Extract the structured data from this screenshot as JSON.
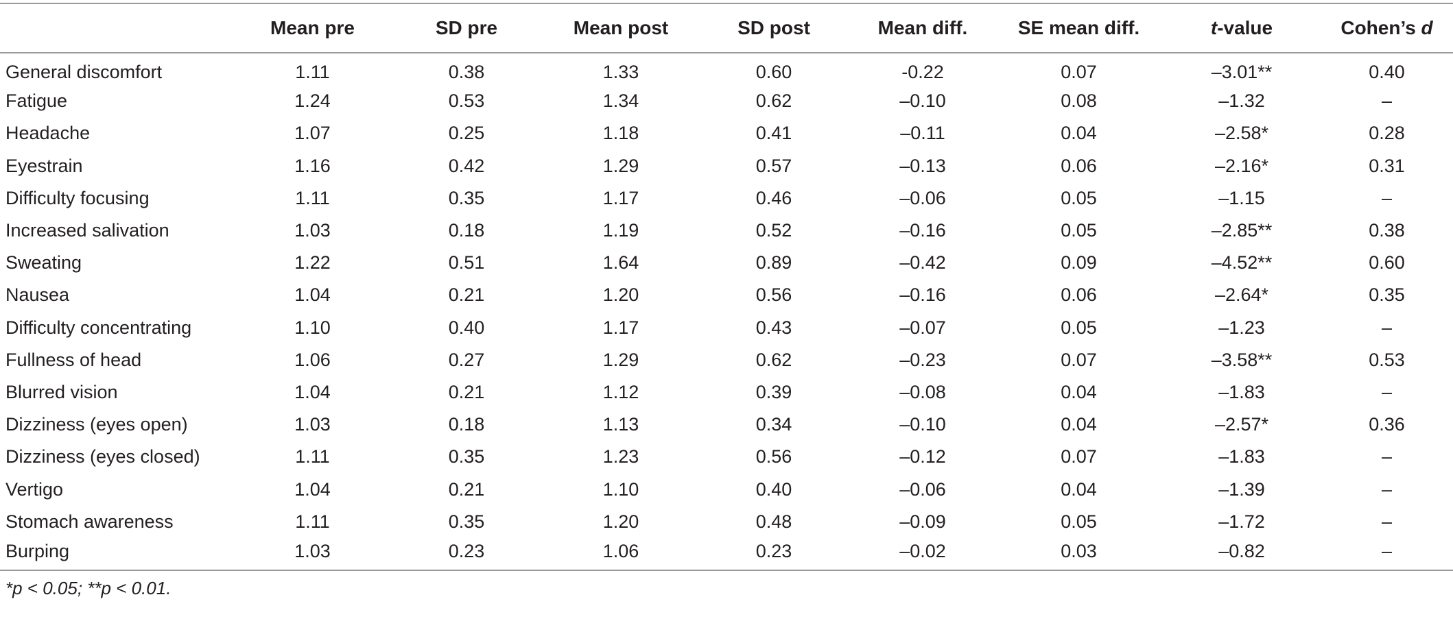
{
  "table": {
    "headers": {
      "label": "",
      "mean_pre": "Mean pre",
      "sd_pre": "SD pre",
      "mean_post": "Mean post",
      "sd_post": "SD post",
      "mean_diff": "Mean diff.",
      "se_mean_diff": "SE mean diff.",
      "t_value_italic": "t",
      "t_value_rest": "-value",
      "cohens_d_prefix": "Cohen’s ",
      "cohens_d_italic": "d"
    },
    "rows": [
      {
        "label": "General discomfort",
        "mean_pre": "1.11",
        "sd_pre": "0.38",
        "mean_post": "1.33",
        "sd_post": "0.60",
        "mean_diff": "-0.22",
        "se": "0.07",
        "t": "–3.01**",
        "d": "0.40"
      },
      {
        "label": "Fatigue",
        "mean_pre": "1.24",
        "sd_pre": "0.53",
        "mean_post": "1.34",
        "sd_post": "0.62",
        "mean_diff": "–0.10",
        "se": "0.08",
        "t": "–1.32",
        "d": "–"
      },
      {
        "label": "Headache",
        "mean_pre": "1.07",
        "sd_pre": "0.25",
        "mean_post": "1.18",
        "sd_post": "0.41",
        "mean_diff": "–0.11",
        "se": "0.04",
        "t": "–2.58*",
        "d": "0.28"
      },
      {
        "label": "Eyestrain",
        "mean_pre": "1.16",
        "sd_pre": "0.42",
        "mean_post": "1.29",
        "sd_post": "0.57",
        "mean_diff": "–0.13",
        "se": "0.06",
        "t": "–2.16*",
        "d": "0.31"
      },
      {
        "label": "Difficulty focusing",
        "mean_pre": "1.11",
        "sd_pre": "0.35",
        "mean_post": "1.17",
        "sd_post": "0.46",
        "mean_diff": "–0.06",
        "se": "0.05",
        "t": "–1.15",
        "d": "–"
      },
      {
        "label": "Increased salivation",
        "mean_pre": "1.03",
        "sd_pre": "0.18",
        "mean_post": "1.19",
        "sd_post": "0.52",
        "mean_diff": "–0.16",
        "se": "0.05",
        "t": "–2.85**",
        "d": "0.38"
      },
      {
        "label": "Sweating",
        "mean_pre": "1.22",
        "sd_pre": "0.51",
        "mean_post": "1.64",
        "sd_post": "0.89",
        "mean_diff": "–0.42",
        "se": "0.09",
        "t": "–4.52**",
        "d": "0.60"
      },
      {
        "label": "Nausea",
        "mean_pre": "1.04",
        "sd_pre": "0.21",
        "mean_post": "1.20",
        "sd_post": "0.56",
        "mean_diff": "–0.16",
        "se": "0.06",
        "t": "–2.64*",
        "d": "0.35"
      },
      {
        "label": "Difficulty concentrating",
        "mean_pre": "1.10",
        "sd_pre": "0.40",
        "mean_post": "1.17",
        "sd_post": "0.43",
        "mean_diff": "–0.07",
        "se": "0.05",
        "t": "–1.23",
        "d": "–"
      },
      {
        "label": "Fullness of head",
        "mean_pre": "1.06",
        "sd_pre": "0.27",
        "mean_post": "1.29",
        "sd_post": "0.62",
        "mean_diff": "–0.23",
        "se": "0.07",
        "t": "–3.58**",
        "d": "0.53"
      },
      {
        "label": "Blurred vision",
        "mean_pre": "1.04",
        "sd_pre": "0.21",
        "mean_post": "1.12",
        "sd_post": "0.39",
        "mean_diff": "–0.08",
        "se": "0.04",
        "t": "–1.83",
        "d": "–"
      },
      {
        "label": "Dizziness (eyes open)",
        "mean_pre": "1.03",
        "sd_pre": "0.18",
        "mean_post": "1.13",
        "sd_post": "0.34",
        "mean_diff": "–0.10",
        "se": "0.04",
        "t": "–2.57*",
        "d": "0.36"
      },
      {
        "label": "Dizziness (eyes closed)",
        "mean_pre": "1.11",
        "sd_pre": "0.35",
        "mean_post": "1.23",
        "sd_post": "0.56",
        "mean_diff": "–0.12",
        "se": "0.07",
        "t": "–1.83",
        "d": "–"
      },
      {
        "label": "Vertigo",
        "mean_pre": "1.04",
        "sd_pre": "0.21",
        "mean_post": "1.10",
        "sd_post": "0.40",
        "mean_diff": "–0.06",
        "se": "0.04",
        "t": "–1.39",
        "d": "–"
      },
      {
        "label": "Stomach awareness",
        "mean_pre": "1.11",
        "sd_pre": "0.35",
        "mean_post": "1.20",
        "sd_post": "0.48",
        "mean_diff": "–0.09",
        "se": "0.05",
        "t": "–1.72",
        "d": "–"
      },
      {
        "label": "Burping",
        "mean_pre": "1.03",
        "sd_pre": "0.23",
        "mean_post": "1.06",
        "sd_post": "0.23",
        "mean_diff": "–0.02",
        "se": "0.03",
        "t": "–0.82",
        "d": "–"
      }
    ],
    "footnote": "*p < 0.05; **p < 0.01."
  }
}
